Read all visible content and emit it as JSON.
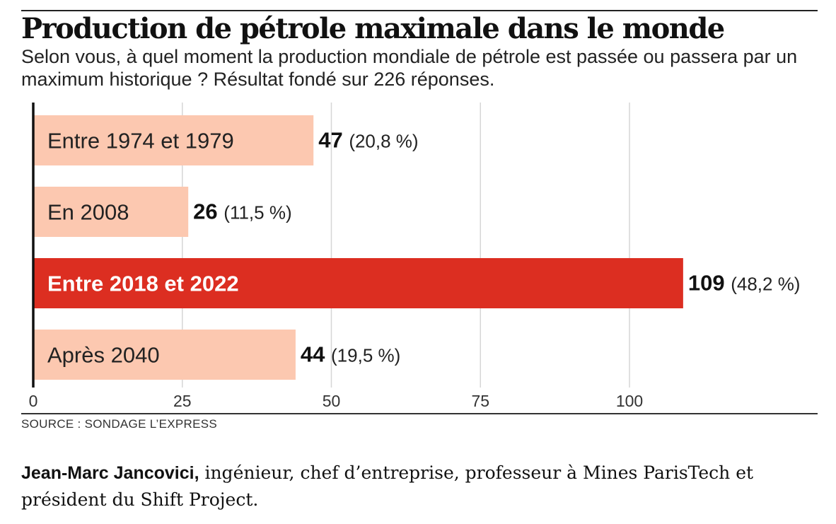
{
  "header": {
    "title": "Production de pétrole maximale dans le monde",
    "subtitle": "Selon vous, à quel moment la production mondiale de pétrole est passée ou passera par un maximum historique ? Résultat fondé sur 226 réponses."
  },
  "chart_data": {
    "type": "bar",
    "orientation": "horizontal",
    "title": "Production de pétrole maximale dans le monde",
    "categories": [
      "Entre 1974 et 1979",
      "En 2008",
      "Entre 2018 et 2022",
      "Après 2040"
    ],
    "values": [
      47,
      26,
      109,
      44
    ],
    "value_labels": [
      "47",
      "26",
      "109",
      "44"
    ],
    "percent_labels": [
      "(20,8 %)",
      "(11,5 %)",
      "(48,2 %)",
      "(19,5 %)"
    ],
    "highlight_index": 2,
    "xlim": [
      0,
      130
    ],
    "xticks": [
      0,
      25,
      50,
      75,
      100
    ],
    "xtick_labels": [
      "0",
      "25",
      "50",
      "75",
      "100"
    ],
    "grid": true,
    "xlabel": "",
    "ylabel": ""
  },
  "colors": {
    "bar": "#fcc8b0",
    "highlight": "#dc2e21",
    "grid": "#d6d6d6",
    "axis": "#111111",
    "label_text": "#222222",
    "highlight_text": "#ffffff"
  },
  "footer": {
    "source": "SOURCE : SONDAGE L’EXPRESS",
    "author_name": "Jean-Marc Jancovici,",
    "author_description": " ingénieur, chef d’entreprise, professeur à Mines ParisTech et président du Shift Project."
  }
}
